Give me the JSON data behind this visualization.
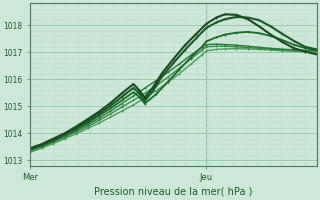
{
  "bg_color": "#cce8d8",
  "grid_color_major": "#99ccaa",
  "grid_color_minor": "#b8dfc8",
  "line_color_dark": "#1a5c2a",
  "xlabel": "Pression niveau de la mer( hPa )",
  "xticklabels": [
    "Mer",
    "Jeu"
  ],
  "xtick_positions": [
    0.0,
    0.615
  ],
  "vline_x": 0.615,
  "ylim": [
    1012.8,
    1018.8
  ],
  "yticks": [
    1013,
    1014,
    1015,
    1016,
    1017,
    1018
  ],
  "series": [
    {
      "x": [
        0.0,
        0.04,
        0.08,
        0.12,
        0.16,
        0.2,
        0.24,
        0.28,
        0.32,
        0.36,
        0.4,
        0.44,
        0.48,
        0.52,
        0.56,
        0.6,
        0.615,
        0.65,
        0.68,
        0.72,
        0.76,
        0.8,
        0.84,
        0.88,
        0.92,
        0.96,
        1.0
      ],
      "y": [
        1013.3,
        1013.45,
        1013.62,
        1013.8,
        1013.98,
        1014.18,
        1014.38,
        1014.6,
        1014.82,
        1015.05,
        1015.3,
        1015.58,
        1015.88,
        1016.2,
        1016.55,
        1016.9,
        1017.05,
        1017.1,
        1017.12,
        1017.13,
        1017.12,
        1017.1,
        1017.08,
        1017.05,
        1017.03,
        1017.01,
        1017.0
      ],
      "color": "#4a9a5a",
      "lw": 1.0
    },
    {
      "x": [
        0.0,
        0.04,
        0.08,
        0.12,
        0.16,
        0.2,
        0.24,
        0.28,
        0.32,
        0.36,
        0.4,
        0.44,
        0.48,
        0.52,
        0.56,
        0.6,
        0.615,
        0.65,
        0.68,
        0.72,
        0.76,
        0.8,
        0.84,
        0.88,
        0.92,
        0.96,
        1.0
      ],
      "y": [
        1013.35,
        1013.5,
        1013.67,
        1013.85,
        1014.05,
        1014.25,
        1014.48,
        1014.72,
        1014.97,
        1015.22,
        1015.48,
        1015.76,
        1016.07,
        1016.4,
        1016.74,
        1017.08,
        1017.2,
        1017.22,
        1017.22,
        1017.2,
        1017.17,
        1017.14,
        1017.11,
        1017.09,
        1017.07,
        1017.05,
        1017.04
      ],
      "color": "#3a8a4a",
      "lw": 1.0
    },
    {
      "x": [
        0.0,
        0.04,
        0.08,
        0.12,
        0.16,
        0.2,
        0.24,
        0.28,
        0.32,
        0.36,
        0.4,
        0.44,
        0.48,
        0.52,
        0.56,
        0.6,
        0.615,
        0.65,
        0.68,
        0.72,
        0.76,
        0.8,
        0.84,
        0.88,
        0.92,
        0.96,
        1.0
      ],
      "y": [
        1013.38,
        1013.53,
        1013.7,
        1013.9,
        1014.1,
        1014.32,
        1014.56,
        1014.82,
        1015.1,
        1015.38,
        1015.67,
        1015.95,
        1016.25,
        1016.56,
        1016.88,
        1017.18,
        1017.28,
        1017.3,
        1017.28,
        1017.26,
        1017.22,
        1017.18,
        1017.14,
        1017.11,
        1017.09,
        1017.07,
        1017.06
      ],
      "color": "#2a7a3a",
      "lw": 1.0
    },
    {
      "x": [
        0.0,
        0.04,
        0.08,
        0.12,
        0.16,
        0.2,
        0.24,
        0.28,
        0.32,
        0.36,
        0.38,
        0.4,
        0.44,
        0.48,
        0.52,
        0.56,
        0.6,
        0.615,
        0.65,
        0.68,
        0.72,
        0.76,
        0.8,
        0.84,
        0.88,
        0.92,
        0.96,
        1.0
      ],
      "y": [
        1013.4,
        1013.55,
        1013.73,
        1013.93,
        1014.15,
        1014.38,
        1014.65,
        1014.92,
        1015.22,
        1015.52,
        1015.35,
        1015.1,
        1015.45,
        1015.9,
        1016.35,
        1016.8,
        1017.2,
        1017.4,
        1017.55,
        1017.65,
        1017.72,
        1017.75,
        1017.7,
        1017.6,
        1017.45,
        1017.28,
        1017.15,
        1017.08
      ],
      "color": "#1a6a2a",
      "lw": 1.3
    },
    {
      "x": [
        0.0,
        0.04,
        0.08,
        0.12,
        0.16,
        0.2,
        0.24,
        0.28,
        0.32,
        0.36,
        0.38,
        0.4,
        0.43,
        0.46,
        0.5,
        0.54,
        0.58,
        0.615,
        0.65,
        0.68,
        0.72,
        0.76,
        0.8,
        0.84,
        0.88,
        0.92,
        0.96,
        1.0
      ],
      "y": [
        1013.42,
        1013.58,
        1013.76,
        1013.97,
        1014.2,
        1014.45,
        1014.72,
        1015.02,
        1015.35,
        1015.68,
        1015.48,
        1015.2,
        1015.6,
        1016.1,
        1016.6,
        1017.08,
        1017.52,
        1017.9,
        1018.1,
        1018.22,
        1018.3,
        1018.28,
        1018.18,
        1017.95,
        1017.68,
        1017.42,
        1017.2,
        1017.1
      ],
      "color": "#1a5a28",
      "lw": 1.5
    },
    {
      "x": [
        0.0,
        0.04,
        0.08,
        0.12,
        0.16,
        0.2,
        0.24,
        0.28,
        0.32,
        0.36,
        0.38,
        0.4,
        0.43,
        0.46,
        0.5,
        0.54,
        0.58,
        0.615,
        0.65,
        0.68,
        0.72,
        0.76,
        0.8,
        0.84,
        0.88,
        0.92,
        0.96,
        1.0
      ],
      "y": [
        1013.45,
        1013.6,
        1013.8,
        1014.0,
        1014.25,
        1014.52,
        1014.8,
        1015.12,
        1015.48,
        1015.82,
        1015.6,
        1015.32,
        1015.72,
        1016.22,
        1016.75,
        1017.25,
        1017.68,
        1018.05,
        1018.28,
        1018.4,
        1018.38,
        1018.22,
        1017.95,
        1017.65,
        1017.38,
        1017.15,
        1017.02,
        1016.92
      ],
      "color": "#1a4a20",
      "lw": 1.5
    }
  ]
}
